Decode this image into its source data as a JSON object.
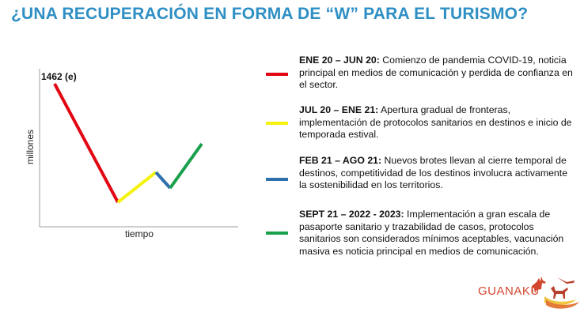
{
  "title": "¿UNA RECUPERACIÓN EN FORMA DE “W” PARA EL TURISMO?",
  "chart": {
    "peak_label": "1462 (e)",
    "ylabel": "millones",
    "xlabel": "tiempo",
    "segment_colors": [
      "#e30613",
      "#f5f20f",
      "#2f6fad",
      "#19a04b"
    ]
  },
  "legend": [
    {
      "period": "ENE 20 – JUN 20:",
      "text": " Comienzo de pandemia COVID-19, noticia principal en medios de comunicación y perdida de confianza en el sector.",
      "color": "#e30613"
    },
    {
      "period": "JUL 20 – ENE 21:",
      "text": " Apertura gradual de fronteras, implementación de protocolos sanitarios en destinos e inicio de temporada estival.",
      "color": "#f5f20f"
    },
    {
      "period": "FEB 21 – AGO 21:",
      "text": " Nuevos brotes llevan al cierre temporal de destinos, competitividad de los destinos involucra activamente la sostenibilidad en los territorios.",
      "color": "#2f6fad"
    },
    {
      "period": "SEPT 21 – 2022 - 2023:",
      "text": " Implementación a gran escala de pasaporte sanitario y trazabilidad de casos, protocolos sanitarios son considerados mínimos aceptables, vacunación masiva es noticia principal en medios de comunicación.",
      "color": "#19a04b"
    }
  ],
  "logo": {
    "name": "GUANAKU",
    "brand_color": "#d2472e"
  }
}
